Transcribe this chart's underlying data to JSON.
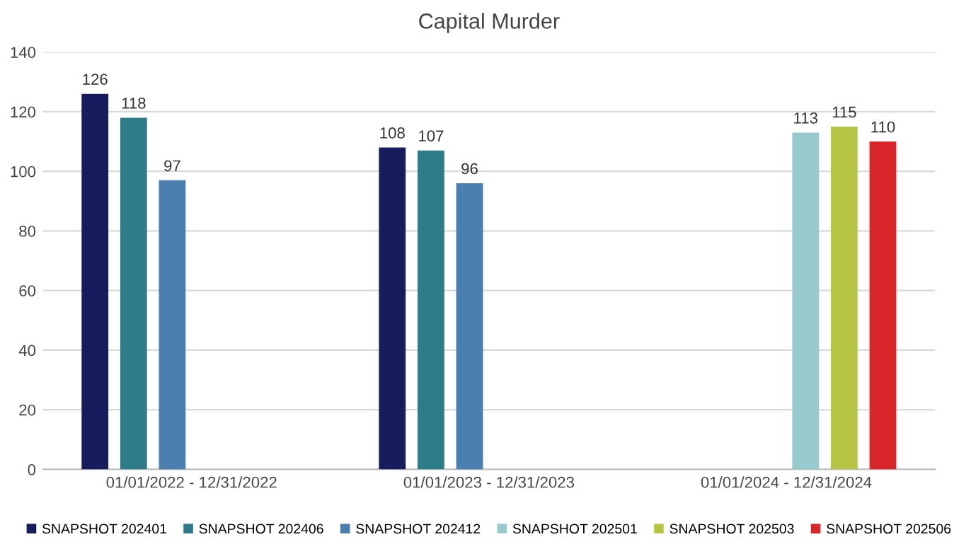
{
  "chart_data": {
    "type": "bar",
    "title": "Capital Murder",
    "categories": [
      "01/01/2022 - 12/31/2022",
      "01/01/2023 - 12/31/2023",
      "01/01/2024 - 12/31/2024"
    ],
    "series": [
      {
        "name": "SNAPSHOT 202401",
        "color": "#161c5c",
        "values": [
          126,
          108,
          null
        ]
      },
      {
        "name": "SNAPSHOT 202406",
        "color": "#2e7b8a",
        "values": [
          118,
          107,
          null
        ]
      },
      {
        "name": "SNAPSHOT 202412",
        "color": "#4a7fb0",
        "values": [
          97,
          96,
          null
        ]
      },
      {
        "name": "SNAPSHOT 202501",
        "color": "#98cacd",
        "values": [
          null,
          null,
          113
        ]
      },
      {
        "name": "SNAPSHOT 202503",
        "color": "#b6c544",
        "values": [
          null,
          null,
          115
        ]
      },
      {
        "name": "SNAPSHOT 202506",
        "color": "#d9262b",
        "values": [
          null,
          null,
          110
        ]
      }
    ],
    "ylim": [
      0,
      140
    ],
    "yticks": [
      0,
      20,
      40,
      60,
      80,
      100,
      120,
      140
    ],
    "grid": "y",
    "legend": "bottom",
    "data_labels": true
  }
}
